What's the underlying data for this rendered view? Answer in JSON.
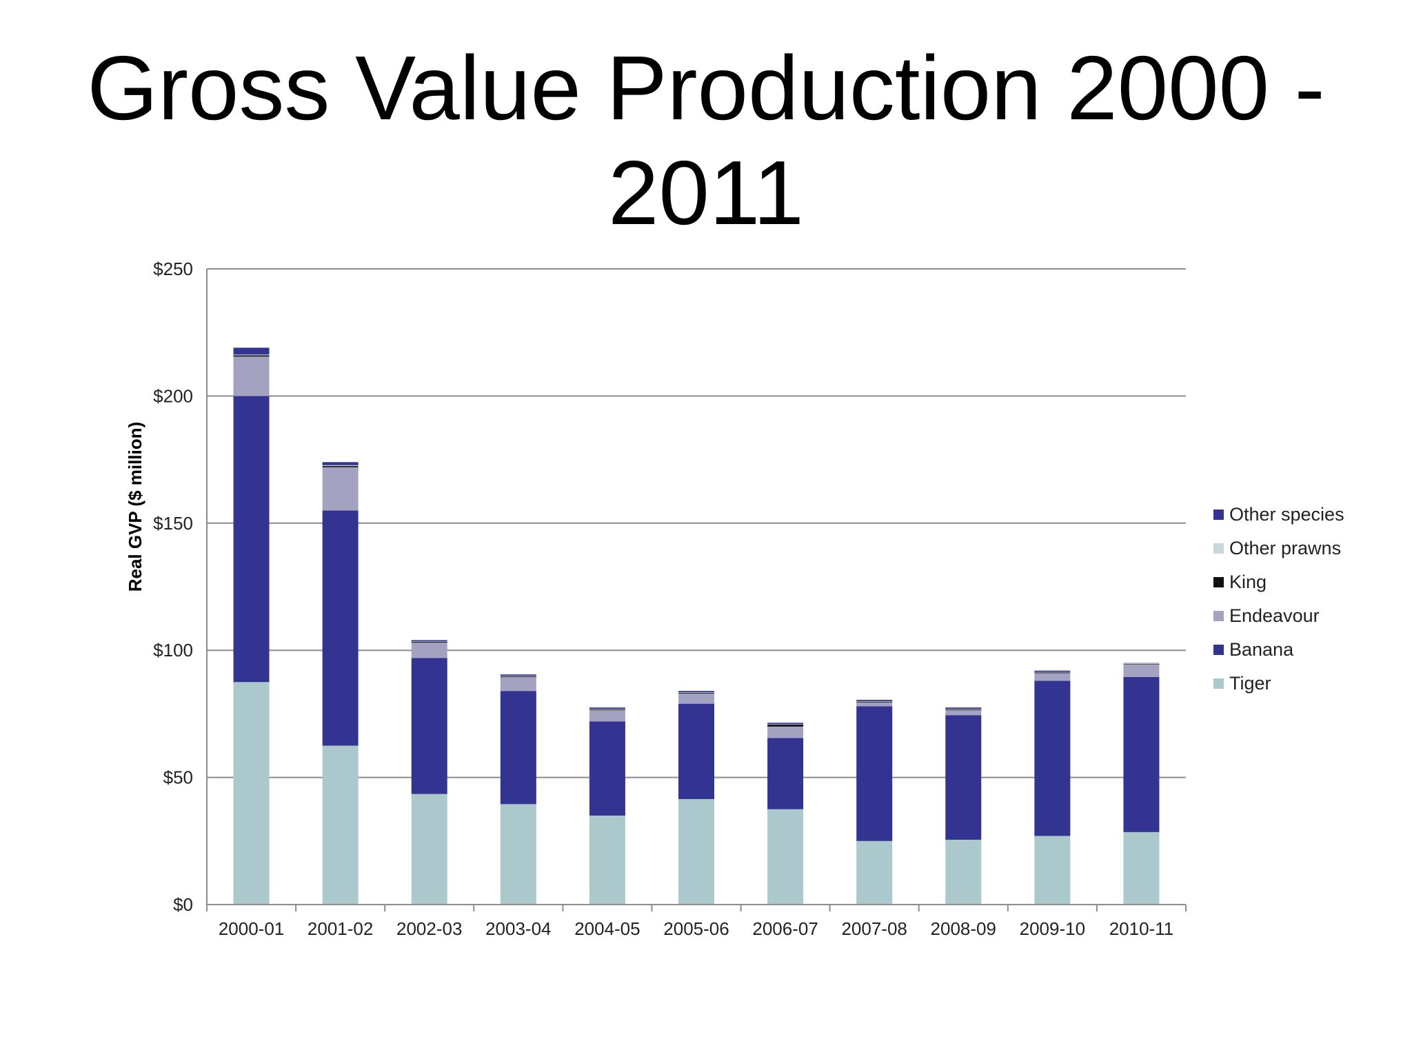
{
  "title": "Gross Value Production 2000 - 2011",
  "chart_data": {
    "type": "bar",
    "stacked": true,
    "title": "Gross Value Production 2000 - 2011",
    "xlabel": "",
    "ylabel": "Real GVP ($ million)",
    "ylim": [
      0,
      250
    ],
    "yticks": [
      0,
      50,
      100,
      150,
      200,
      250
    ],
    "ytick_labels": [
      "$0",
      "$50",
      "$100",
      "$150",
      "$200",
      "$250"
    ],
    "grid": true,
    "legend_position": "right",
    "categories": [
      "2000-01",
      "2001-02",
      "2002-03",
      "2003-04",
      "2004-05",
      "2005-06",
      "2006-07",
      "2007-08",
      "2008-09",
      "2009-10",
      "2010-11"
    ],
    "series": [
      {
        "name": "Tiger",
        "color": "#abc8cd",
        "values": [
          87.5,
          62.5,
          43.5,
          39.5,
          35,
          41.5,
          37.5,
          25,
          25.5,
          27,
          28.5
        ]
      },
      {
        "name": "Banana",
        "color": "#333391",
        "values": [
          112.5,
          92.5,
          53.5,
          44.5,
          37,
          37.5,
          28,
          53,
          49,
          61,
          61
        ]
      },
      {
        "name": "Endeavour",
        "color": "#a3a3c1",
        "values": [
          15.5,
          17,
          6,
          5.5,
          4.5,
          4,
          4.5,
          1.5,
          2,
          3,
          5
        ]
      },
      {
        "name": "King",
        "color": "#111111",
        "values": [
          0.5,
          0.5,
          0.3,
          0.3,
          0.3,
          0.3,
          0.8,
          0.3,
          0.3,
          0.3,
          0.2
        ]
      },
      {
        "name": "Other prawns",
        "color": "#c6d8d8",
        "values": [
          0.3,
          0.3,
          0.2,
          0.2,
          0.2,
          0.2,
          0.2,
          0.2,
          0.2,
          0.2,
          0.2
        ]
      },
      {
        "name": "Other species",
        "color": "#333391",
        "values": [
          2.7,
          1.2,
          0.5,
          0.5,
          0.5,
          0.5,
          0.5,
          0.5,
          0.5,
          0.5,
          0.1
        ]
      }
    ],
    "legend_order": [
      "Other species",
      "Other prawns",
      "King",
      "Endeavour",
      "Banana",
      "Tiger"
    ]
  }
}
